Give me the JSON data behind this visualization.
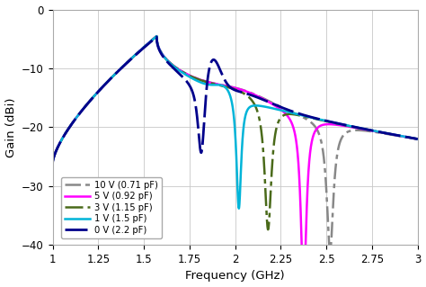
{
  "xlabel": "Frequency (GHz)",
  "ylabel": "Gain (dBi)",
  "xlim": [
    1.0,
    3.0
  ],
  "ylim": [
    -40,
    0
  ],
  "xticks": [
    1.0,
    1.25,
    1.5,
    1.75,
    2.0,
    2.25,
    2.5,
    2.75,
    3.0
  ],
  "xticklabels": [
    "1",
    "1.25",
    "1.5",
    "1.75",
    "2",
    "2.25",
    "2.5",
    "2.75",
    "3"
  ],
  "yticks": [
    0,
    -10,
    -20,
    -30,
    -40
  ],
  "legend": [
    {
      "label": "10 V (0.71 pF)",
      "color": "#888888",
      "linewidth": 1.8
    },
    {
      "label": "5 V (0.92 pF)",
      "color": "#ff00ff",
      "linewidth": 1.8
    },
    {
      "label": "3 V (1.15 pF)",
      "color": "#4a6a1a",
      "linewidth": 1.8
    },
    {
      "label": "1 V (1.5 pF)",
      "color": "#00b4d8",
      "linewidth": 1.8
    },
    {
      "label": "0 V (2.2 pF)",
      "color": "#00008b",
      "linewidth": 2.0
    }
  ],
  "background_color": "#ffffff",
  "grid_color": "#c8c8c8"
}
